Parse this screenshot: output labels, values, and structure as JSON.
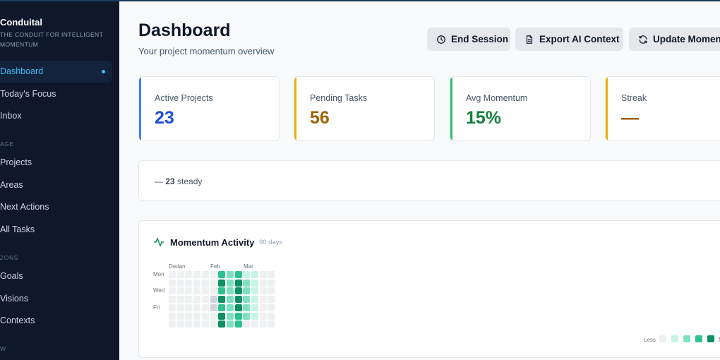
{
  "app": {
    "name": "Conduital",
    "tagline": "THE CONDUIT FOR INTELLIGENT MOMENTUM"
  },
  "sidebar": {
    "items": [
      {
        "label": "Dashboard",
        "active": true
      },
      {
        "label": "Today's Focus"
      },
      {
        "label": "Inbox"
      }
    ],
    "sections": [
      {
        "label": "AGE",
        "items": [
          {
            "label": "Projects"
          },
          {
            "label": "Areas"
          },
          {
            "label": "Next Actions"
          },
          {
            "label": "All Tasks"
          }
        ]
      },
      {
        "label": "ZONS",
        "items": [
          {
            "label": "Goals"
          },
          {
            "label": "Visions"
          },
          {
            "label": "Contexts"
          }
        ]
      },
      {
        "label": "W",
        "items": []
      }
    ]
  },
  "header": {
    "title": "Dashboard",
    "subtitle": "Your project momentum overview",
    "buttons": [
      {
        "label": "End Session",
        "icon": "clock-icon"
      },
      {
        "label": "Export AI Context",
        "icon": "document-icon"
      },
      {
        "label": "Update Momentum",
        "icon": "refresh-icon"
      }
    ]
  },
  "stats": [
    {
      "label": "Active Projects",
      "value": "23",
      "color": "#1d4ed8",
      "bar": "#3b82f6"
    },
    {
      "label": "Pending Tasks",
      "value": "56",
      "color": "#a16207",
      "bar": "#eab308"
    },
    {
      "label": "Avg Momentum",
      "value": "15%",
      "color": "#15803d",
      "bar": "#22c55e"
    },
    {
      "label": "Streak",
      "value": "—",
      "color": "#a16207",
      "bar": "#eab308"
    }
  ],
  "trend": {
    "symbol": "—",
    "count": "23",
    "label": "steady"
  },
  "activity": {
    "title": "Momentum Activity",
    "subtitle": "90 days",
    "months": [
      "Dedan",
      "Feb",
      "Mar"
    ],
    "day_labels": [
      "Mon",
      "Wed",
      "Fri"
    ],
    "legend": {
      "less": "Less",
      "more": "M"
    },
    "colors": [
      "#eef0f2",
      "#d1d5db",
      "#c6f6e2",
      "#7fe0bf",
      "#2fc291",
      "#0f8f62"
    ],
    "levels": [
      [
        0,
        0,
        0,
        0,
        0,
        0,
        4,
        3,
        4,
        2,
        2,
        0,
        0
      ],
      [
        0,
        0,
        0,
        0,
        0,
        0,
        5,
        3,
        5,
        3,
        2,
        0,
        0
      ],
      [
        0,
        0,
        0,
        0,
        0,
        0,
        4,
        3,
        5,
        3,
        2,
        0,
        0
      ],
      [
        0,
        0,
        0,
        0,
        0,
        1,
        5,
        3,
        5,
        3,
        2,
        0,
        0
      ],
      [
        0,
        0,
        0,
        0,
        0,
        1,
        4,
        3,
        5,
        3,
        2,
        0,
        0
      ],
      [
        0,
        0,
        0,
        0,
        0,
        0,
        5,
        3,
        4,
        3,
        2,
        0,
        0
      ],
      [
        0,
        0,
        0,
        0,
        0,
        0,
        5,
        3,
        4,
        0,
        0,
        0,
        0
      ]
    ]
  }
}
